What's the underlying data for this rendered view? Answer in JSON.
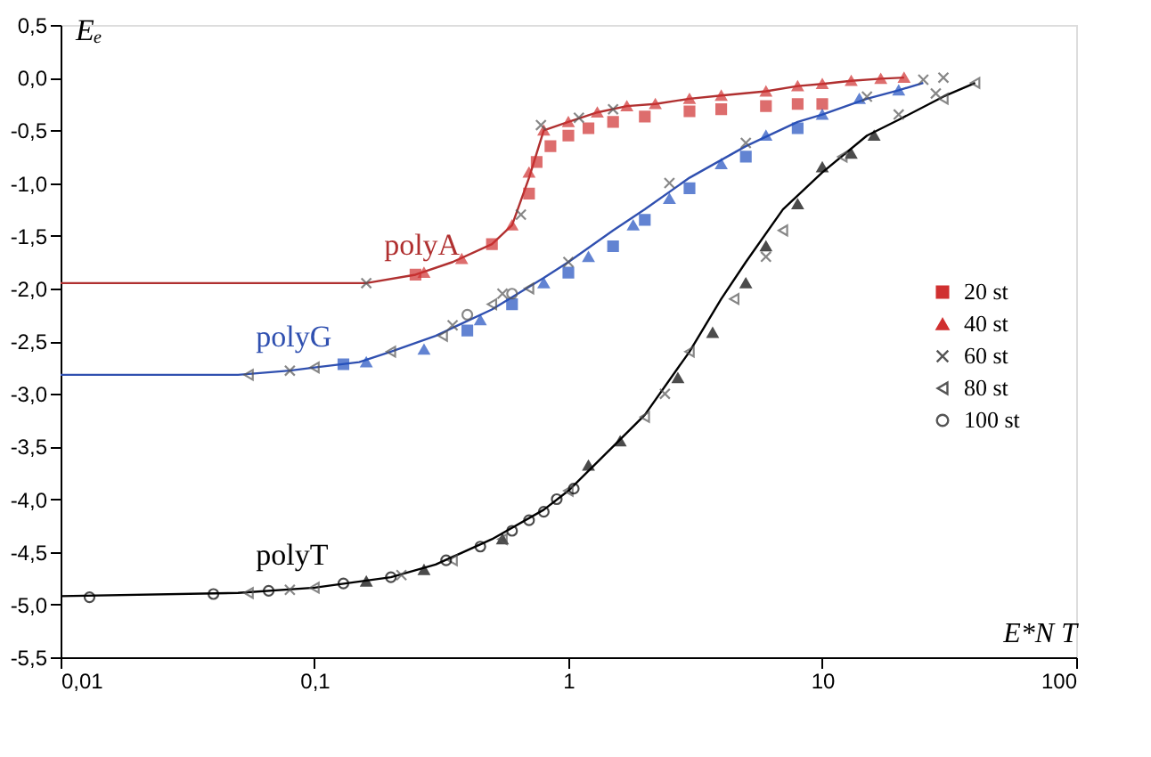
{
  "chart_data": {
    "type": "scatter",
    "xlabel": "E*N T",
    "ylabel": "Eₑ",
    "log": "x",
    "grid": false,
    "legend": "right",
    "xlim": [
      0.01,
      100
    ],
    "xticks": [
      {
        "value": 0.01,
        "label": "0,01"
      },
      {
        "value": 0.1,
        "label": "0,1"
      },
      1,
      10,
      100
    ],
    "ylim": [
      -5.5,
      0.5
    ],
    "yticks": [
      {
        "value": 0.5,
        "label": "0,5"
      },
      {
        "value": 0,
        "label": "0,0"
      },
      {
        "value": -0.5,
        "label": "-0,5"
      },
      {
        "value": -1,
        "label": "-1,0"
      },
      {
        "value": -1.5,
        "label": "-1,5"
      },
      {
        "value": -2,
        "label": "-2,0"
      },
      {
        "value": -2.5,
        "label": "-2,5"
      },
      {
        "value": -3,
        "label": "-3,0"
      },
      {
        "value": -3.5,
        "label": "-3,5"
      },
      {
        "value": -4,
        "label": "-4,0"
      },
      {
        "value": -4.5,
        "label": "-4,5"
      },
      {
        "value": -5,
        "label": "-5,0"
      },
      {
        "value": -5.5,
        "label": "-5,5"
      }
    ],
    "annotations": [
      "polyA",
      "polyG",
      "polyT"
    ],
    "series": [
      {
        "type": "line",
        "color": "#b03030",
        "x": [
          0.01,
          0.16,
          0.25,
          0.35,
          0.5,
          0.6,
          0.7,
          0.8,
          1.0,
          1.3,
          1.7,
          2.2,
          3,
          4,
          6,
          8,
          10,
          13,
          17,
          21
        ],
        "values": [
          -1.95,
          -1.95,
          -1.87,
          -1.75,
          -1.58,
          -1.4,
          -0.95,
          -0.5,
          -0.42,
          -0.33,
          -0.27,
          -0.25,
          -0.2,
          -0.17,
          -0.13,
          -0.08,
          -0.06,
          -0.03,
          -0.01,
          0.0
        ]
      },
      {
        "type": "line",
        "color": "#3050b0",
        "x": [
          0.01,
          0.05,
          0.08,
          0.1,
          0.15,
          0.2,
          0.3,
          0.5,
          0.8,
          1,
          1.5,
          2,
          3,
          5,
          8,
          10,
          15,
          20,
          25
        ],
        "values": [
          -2.82,
          -2.82,
          -2.78,
          -2.75,
          -2.7,
          -2.6,
          -2.45,
          -2.2,
          -1.9,
          -1.75,
          -1.45,
          -1.25,
          -0.95,
          -0.65,
          -0.42,
          -0.35,
          -0.2,
          -0.12,
          -0.05
        ]
      },
      {
        "type": "line",
        "color": "#000000",
        "x": [
          0.01,
          0.05,
          0.1,
          0.2,
          0.3,
          0.5,
          0.8,
          1,
          1.5,
          2,
          3,
          4,
          5,
          7,
          10,
          15,
          20,
          30,
          40
        ],
        "values": [
          -4.92,
          -4.89,
          -4.84,
          -4.74,
          -4.62,
          -4.38,
          -4.1,
          -3.92,
          -3.5,
          -3.2,
          -2.6,
          -2.1,
          -1.75,
          -1.25,
          -0.9,
          -0.55,
          -0.4,
          -0.18,
          -0.05
        ]
      },
      {
        "name": "20 st",
        "marker": "square",
        "x": [
          0.25,
          0.5,
          0.7,
          0.75,
          0.85,
          1.0,
          1.2,
          1.5,
          2,
          3,
          4,
          6,
          8,
          10,
          0.13,
          0.4,
          0.6,
          1.0,
          1.5,
          2,
          3,
          5,
          8
        ],
        "values": [
          -1.87,
          -1.58,
          -1.1,
          -0.8,
          -0.65,
          -0.55,
          -0.48,
          -0.42,
          -0.37,
          -0.32,
          -0.3,
          -0.27,
          -0.25,
          -0.25,
          -2.72,
          -2.4,
          -2.15,
          -1.85,
          -1.6,
          -1.35,
          -1.05,
          -0.75,
          -0.48
        ],
        "colors": [
          "#d03030",
          "#d03030",
          "#d03030",
          "#d03030",
          "#d03030",
          "#d03030",
          "#d03030",
          "#d03030",
          "#d03030",
          "#d03030",
          "#d03030",
          "#d03030",
          "#d03030",
          "#d03030",
          "#2050c0",
          "#2050c0",
          "#2050c0",
          "#2050c0",
          "#2050c0",
          "#2050c0",
          "#2050c0",
          "#2050c0",
          "#2050c0"
        ]
      },
      {
        "name": "40 st",
        "marker": "triangle",
        "x": [
          0.27,
          0.38,
          0.6,
          0.7,
          0.8,
          1.0,
          1.3,
          1.7,
          2.2,
          3,
          4,
          6,
          8,
          10,
          13,
          17,
          21,
          0.16,
          0.27,
          0.45,
          0.8,
          1.2,
          1.8,
          2.5,
          4,
          6,
          10,
          14,
          20,
          0.16,
          0.27,
          0.55,
          1.2,
          1.6,
          2.7,
          3.7,
          5,
          6,
          8,
          10,
          13,
          16
        ],
        "values": [
          -1.85,
          -1.72,
          -1.4,
          -0.9,
          -0.5,
          -0.42,
          -0.33,
          -0.27,
          -0.25,
          -0.2,
          -0.17,
          -0.13,
          -0.08,
          -0.06,
          -0.03,
          -0.01,
          0.0,
          -2.7,
          -2.58,
          -2.3,
          -1.95,
          -1.7,
          -1.4,
          -1.15,
          -0.82,
          -0.55,
          -0.35,
          -0.2,
          -0.12,
          -4.78,
          -4.67,
          -4.38,
          -3.68,
          -3.45,
          -2.85,
          -2.42,
          -1.95,
          -1.6,
          -1.2,
          -0.85,
          -0.72,
          -0.55
        ],
        "colors": [
          "#d03030",
          "#d03030",
          "#d03030",
          "#d03030",
          "#d03030",
          "#d03030",
          "#d03030",
          "#d03030",
          "#d03030",
          "#d03030",
          "#d03030",
          "#d03030",
          "#d03030",
          "#d03030",
          "#d03030",
          "#d03030",
          "#d03030",
          "#2050c0",
          "#2050c0",
          "#2050c0",
          "#2050c0",
          "#2050c0",
          "#2050c0",
          "#2050c0",
          "#2050c0",
          "#2050c0",
          "#2050c0",
          "#2050c0",
          "#2050c0",
          "#000000",
          "#000000",
          "#000000",
          "#000000",
          "#000000",
          "#000000",
          "#000000",
          "#000000",
          "#000000",
          "#000000",
          "#000000",
          "#000000",
          "#000000"
        ]
      },
      {
        "name": "60 st",
        "marker": "cross",
        "x": [
          0.16,
          0.65,
          0.78,
          1.1,
          1.5,
          0.08,
          0.35,
          0.55,
          1,
          2.5,
          5,
          15,
          25,
          30,
          0.08,
          0.22,
          2.4,
          6,
          20,
          28
        ],
        "values": [
          -1.95,
          -1.3,
          -0.45,
          -0.38,
          -0.3,
          -2.78,
          -2.35,
          -2.05,
          -1.75,
          -1.0,
          -0.62,
          -0.18,
          -0.02,
          0.0,
          -4.86,
          -4.72,
          -3.0,
          -1.7,
          -0.35,
          -0.15
        ],
        "colors": [
          "#555555",
          "#555555",
          "#555555",
          "#555555",
          "#555555",
          "#555555",
          "#555555",
          "#555555",
          "#555555",
          "#555555",
          "#555555",
          "#555555",
          "#555555",
          "#555555",
          "#555555",
          "#555555",
          "#555555",
          "#555555",
          "#555555",
          "#555555"
        ]
      },
      {
        "name": "80 st",
        "marker": "triangle-left",
        "x": [
          0.055,
          0.1,
          0.2,
          0.32,
          0.5,
          0.7,
          0.055,
          0.1,
          0.35,
          0.55,
          1,
          2,
          3,
          4.5,
          7,
          12,
          30,
          40
        ],
        "values": [
          -2.82,
          -2.75,
          -2.6,
          -2.45,
          -2.15,
          -2.0,
          -4.89,
          -4.84,
          -4.58,
          -4.38,
          -3.92,
          -3.22,
          -2.6,
          -2.1,
          -1.45,
          -0.75,
          -0.2,
          -0.05
        ],
        "colors": [
          "#555555",
          "#555555",
          "#555555",
          "#555555",
          "#555555",
          "#555555",
          "#555555",
          "#555555",
          "#555555",
          "#555555",
          "#555555",
          "#555555",
          "#555555",
          "#555555",
          "#555555",
          "#555555",
          "#555555",
          "#555555"
        ]
      },
      {
        "name": "100 st",
        "marker": "circle",
        "x": [
          0.4,
          0.6,
          0.013,
          0.04,
          0.066,
          0.13,
          0.2,
          0.33,
          0.45,
          0.6,
          0.7,
          0.8,
          0.9,
          1.05
        ],
        "values": [
          -2.25,
          -2.05,
          -4.93,
          -4.9,
          -4.87,
          -4.8,
          -4.74,
          -4.58,
          -4.45,
          -4.3,
          -4.2,
          -4.12,
          -4.0,
          -3.9
        ],
        "colors": [
          "#555555",
          "#555555",
          "#000000",
          "#000000",
          "#000000",
          "#000000",
          "#000000",
          "#000000",
          "#000000",
          "#000000",
          "#000000",
          "#000000",
          "#000000",
          "#000000"
        ]
      }
    ]
  }
}
